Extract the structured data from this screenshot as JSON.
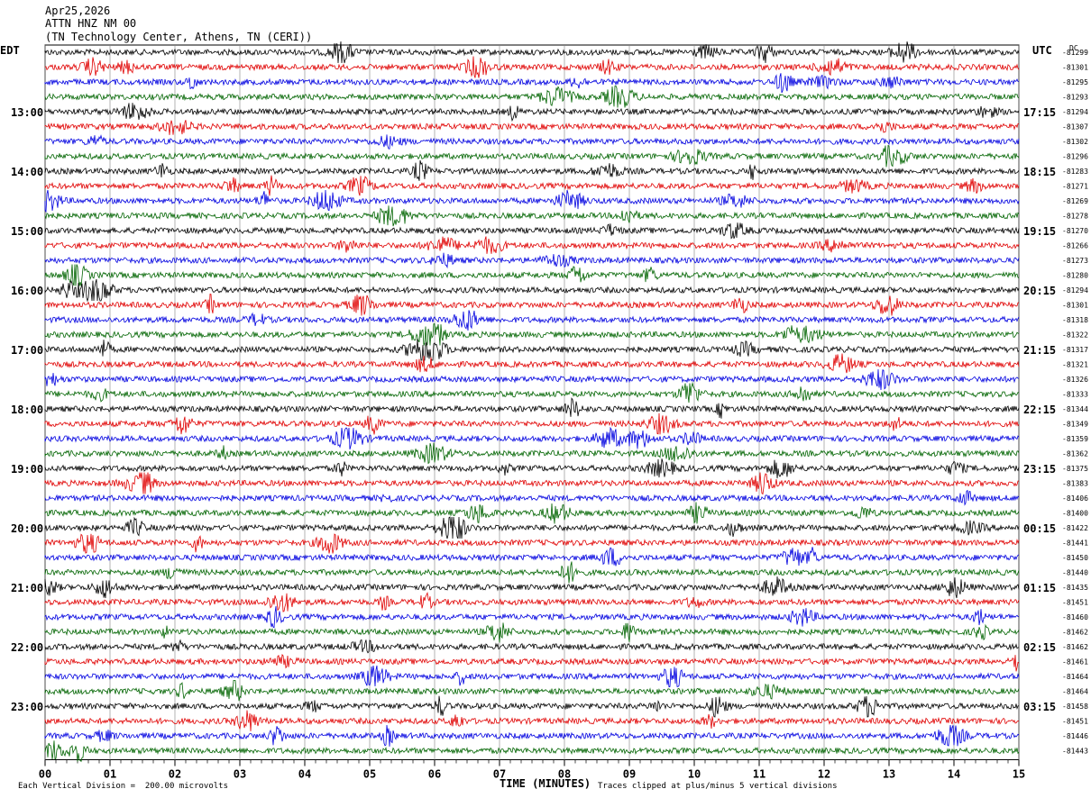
{
  "header": {
    "date": "Apr25,2026",
    "station": "ATTN HNZ NM 00",
    "location": "(TN Technology Center, Athens, TN (CERI))"
  },
  "left_tz": "EDT",
  "right_tz": "UTC",
  "dc_label": "DC",
  "footer": {
    "scale": "Each Vertical Division =  200.00 microvolts",
    "xlabel": "TIME (MINUTES)",
    "clip_note": "Traces clipped at plus/minus 5 vertical divisions"
  },
  "colors": {
    "cycle": [
      "#000000",
      "#e00000",
      "#0000e0",
      "#006400"
    ],
    "grid": "#808080"
  },
  "chart_data": {
    "type": "line",
    "title": "ATTN HNZ NM 00",
    "xlabel": "TIME (MINUTES)",
    "xlim": [
      0,
      15
    ],
    "x_ticks": [
      "00",
      "01",
      "02",
      "03",
      "04",
      "05",
      "06",
      "07",
      "08",
      "09",
      "10",
      "11",
      "12",
      "13",
      "14",
      "15"
    ],
    "rows_per_hour": 4,
    "left_hour_labels": [
      "13:00",
      "14:00",
      "15:00",
      "16:00",
      "17:00",
      "18:00",
      "19:00",
      "20:00",
      "21:00",
      "22:00",
      "23:00"
    ],
    "right_hour_labels": [
      "17:15",
      "18:15",
      "19:15",
      "20:15",
      "21:15",
      "22:15",
      "23:15",
      "00:15",
      "01:15",
      "02:15",
      "03:15"
    ],
    "dc_offsets": [
      -81299,
      -81301,
      -81295,
      -81293,
      -81294,
      -81307,
      -81302,
      -81296,
      -81283,
      -81271,
      -81269,
      -81278,
      -81270,
      -81266,
      -81273,
      -81280,
      -81294,
      -81301,
      -81318,
      -81322,
      -81317,
      -81321,
      -81326,
      -81333,
      -81344,
      -81349,
      -81359,
      -81362,
      -81375,
      -81383,
      -81406,
      -81400,
      -81422,
      -81441,
      -81450,
      -81440,
      -81435,
      -81451,
      -81460,
      -81462,
      -81462,
      -81461,
      -81464,
      -81464,
      -81458,
      -81451,
      -81446,
      -81443
    ],
    "amplitude_divisions": 0.6,
    "clip_divisions": 5
  }
}
